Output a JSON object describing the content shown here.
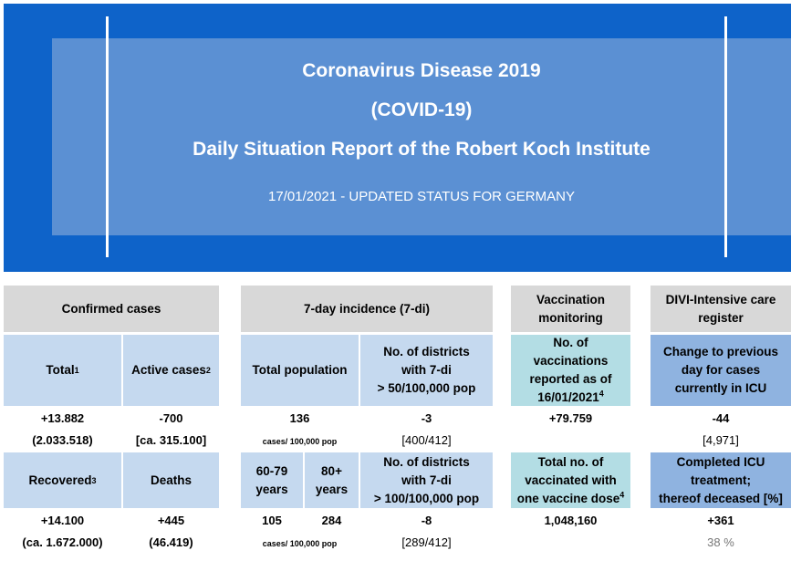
{
  "header": {
    "title_line1": "Coronavirus  Disease 2019",
    "title_line2": "(COVID-19)",
    "title_line3": "Daily Situation  Report of the Robert Koch Institute",
    "status_line": "17/01/2021  - UPDATED  STATUS  FOR GERMANY"
  },
  "confirmed_cases": {
    "heading": "Confirmed cases",
    "total_label": "Total",
    "total_sup": "1",
    "active_label": "Active cases",
    "active_sup": "2",
    "total_change": "+13.882",
    "total_cumulative": "(2.033.518)",
    "active_change": "-700",
    "active_cumulative": "[ca. 315.100]",
    "recovered_label": "Recovered",
    "recovered_sup": "3",
    "deaths_label": "Deaths",
    "recovered_change": "+14.100",
    "recovered_cumulative": "(ca. 1.672.000)",
    "deaths_change": "+445",
    "deaths_cumulative": "(46.419)"
  },
  "incidence": {
    "heading": "7-day incidence (7-di)",
    "total_population_label": "Total population",
    "districts_50_label_1": "No. of districts",
    "districts_50_label_2": "with 7-di",
    "districts_50_label_3": "> 50/100,000 pop",
    "total_population_value": "136",
    "cases_per_pop_1": "cases/ 100,000 pop",
    "districts_50_change": "-3",
    "districts_50_count": "[400/412]",
    "age_60_79_label_1": "60-79",
    "age_60_79_label_2": "years",
    "age_80_label_1": "80+",
    "age_80_label_2": "years",
    "districts_100_label_1": "No. of districts",
    "districts_100_label_2": "with 7-di",
    "districts_100_label_3": "> 100/100,000 pop",
    "age_60_79_value": "105",
    "age_80_value": "284",
    "cases_per_pop_2": "cases/ 100,000 pop",
    "districts_100_change": "-8",
    "districts_100_count": "[289/412]"
  },
  "vaccination": {
    "heading_1": "Vaccination",
    "heading_2": "monitoring",
    "reported_label_1": "No. of",
    "reported_label_2": "vaccinations",
    "reported_label_3": "reported as of",
    "reported_label_4": "16/01/2021",
    "reported_sup": "4",
    "reported_value": "+79.759",
    "total_label_1": "Total no. of",
    "total_label_2": "vaccinated  with",
    "total_label_3": "one vaccine dose",
    "total_sup": "4",
    "total_value": "1,048,160"
  },
  "divi": {
    "heading_1": "DIVI-Intensive care",
    "heading_2": "register",
    "change_label_1": "Change to previous",
    "change_label_2": "day for cases",
    "change_label_3": "currently in ICU",
    "change_value": "-44",
    "current_icu": "[4,971]",
    "completed_label_1": "Completed ICU",
    "completed_label_2": "treatment;",
    "completed_label_3": "thereof deceased [%]",
    "completed_value": "+361",
    "deceased_percent": "38 %"
  },
  "colors": {
    "banner": "#0e63c9",
    "banner_inner": "#5b90d3",
    "gray": "#d8d8d8",
    "light_blue": "#c5d9ef",
    "teal": "#b3dde4",
    "medium_blue": "#8fb3e0"
  }
}
